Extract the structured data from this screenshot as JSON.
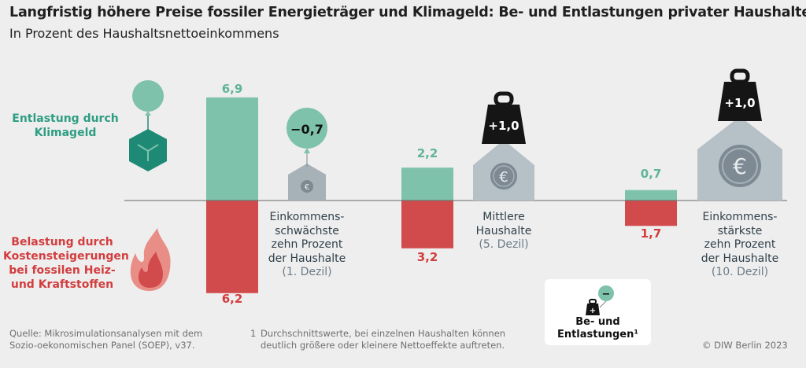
{
  "header": {
    "title": "Langfristig höhere Preise fossiler Energieträger und Klimageld: Be- und Entlastungen privater Haushalte",
    "subtitle": "In Prozent des Haushaltsnettoeinkommens"
  },
  "labels": {
    "relief": [
      "Entlastung durch",
      "Klimageld"
    ],
    "burden": [
      "Belastung durch",
      "Kostensteigerungen",
      "bei fossilen Heiz-",
      "und Kraftstoffen"
    ]
  },
  "groups": [
    {
      "lines": [
        "Einkommens-",
        "schwächste",
        "zehn Prozent",
        "der Haushalte"
      ],
      "sub": "(1. Dezil)"
    },
    {
      "lines": [
        "Mittlere",
        "Haushalte"
      ],
      "sub": "(5. Dezil)"
    },
    {
      "lines": [
        "Einkommens-",
        "stärkste",
        "zehn Prozent",
        "der Haushalte"
      ],
      "sub": "(10. Dezil)"
    }
  ],
  "chart_data": {
    "type": "bar",
    "categories": [
      "1. Dezil",
      "5. Dezil",
      "10. Dezil"
    ],
    "series": [
      {
        "name": "Entlastung durch Klimageld",
        "values": [
          6.9,
          2.2,
          0.7
        ],
        "labels": [
          "6,9",
          "2,2",
          "0,7"
        ]
      },
      {
        "name": "Belastung durch Kostensteigerungen bei fossilen Heiz- und Kraftstoffen",
        "values": [
          -6.2,
          -3.2,
          -1.7
        ],
        "labels": [
          "6,2",
          "3,2",
          "1,7"
        ]
      }
    ],
    "net_effect_labels": [
      "−0,7",
      "+1,0",
      "+1,0"
    ],
    "net_effect_values": [
      -0.7,
      1.0,
      1.0
    ],
    "colors": {
      "relief": "#7ec2ab",
      "burden": "#d24b4c"
    }
  },
  "legend": {
    "text": [
      "Be- und",
      "Entlastungen¹"
    ],
    "plus": "+",
    "minus": "−"
  },
  "footer": {
    "source": [
      "Quelle: Mikrosimulationsanalysen mit dem",
      "Sozio-oekonomischen Panel (SOEP), v37."
    ],
    "note_number": "1",
    "note": [
      "Durchschnittswerte, bei einzelnen Haushalten können",
      "deutlich größere oder kleinere Nettoeffekte auftreten."
    ],
    "copyright": "© DIW Berlin 2023"
  }
}
